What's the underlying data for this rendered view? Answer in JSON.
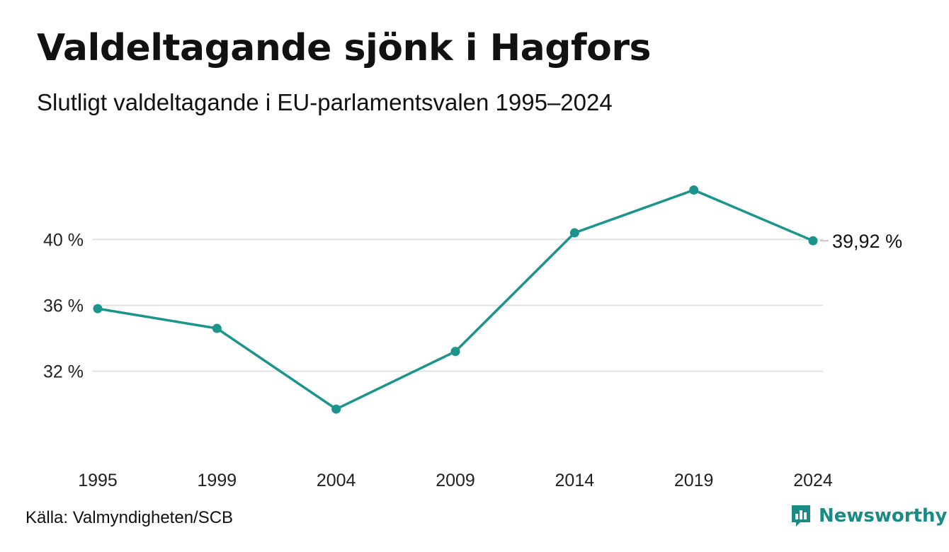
{
  "header": {
    "title": "Valdeltagande sjönk i Hagfors",
    "subtitle": "Slutligt valdeltagande i EU-parlamentsvalen 1995–2024"
  },
  "footer": {
    "source": "Källa: Valmyndigheten/SCB",
    "brand": "Newsworthy",
    "brand_icon": "bar-chart-speech-icon"
  },
  "colors": {
    "line": "#1a948c",
    "grid": "#e1e1e1",
    "brand": "#1a8a84"
  },
  "chart_data": {
    "type": "line",
    "x": [
      "1995",
      "1999",
      "2004",
      "2009",
      "2014",
      "2019",
      "2024"
    ],
    "series": [
      {
        "values": [
          35.8,
          34.6,
          29.7,
          33.2,
          40.4,
          43.0,
          39.92
        ]
      }
    ],
    "yticks": [
      32,
      36,
      40
    ],
    "ytick_labels": [
      "32 %",
      "36 %",
      "40 %"
    ],
    "ylim": [
      28.2,
      45.6
    ],
    "end_label": "39,92 %",
    "grid": true,
    "legend": "none"
  }
}
